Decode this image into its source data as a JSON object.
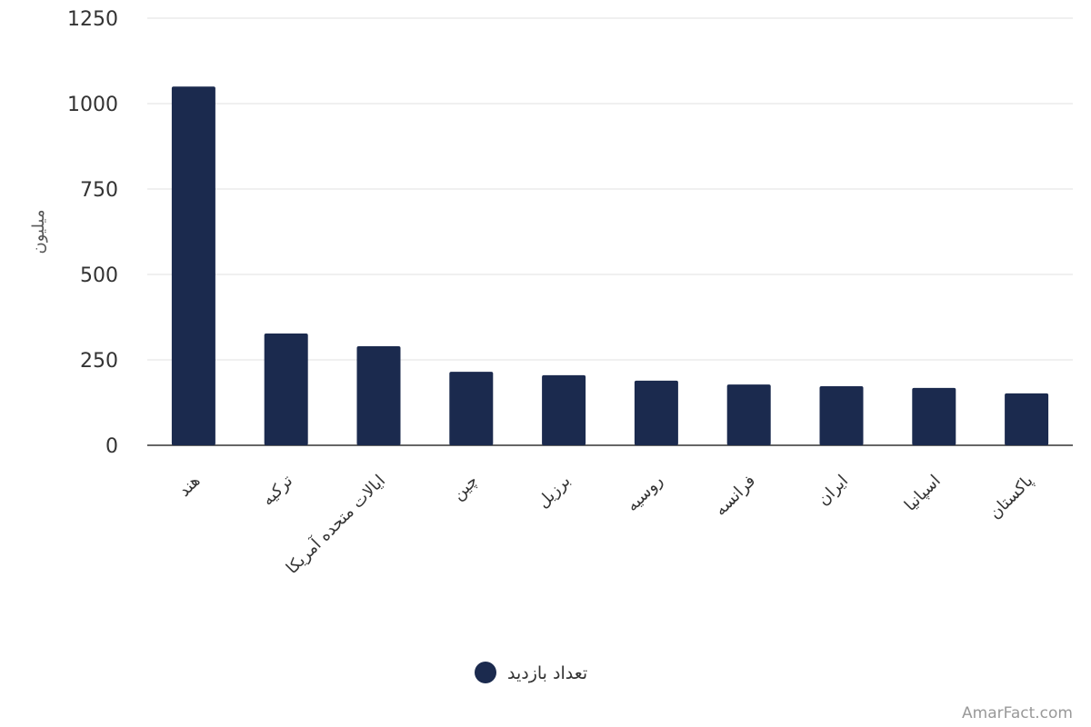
{
  "chart_data": {
    "type": "bar",
    "y_label": "میلیون",
    "categories": [
      "هند",
      "ترکیه",
      "ایالات متحده آمریکا",
      "چین",
      "برزیل",
      "روسیه",
      "فرانسه",
      "ایران",
      "اسپانیا",
      "پاکستان"
    ],
    "series": [
      {
        "name": "تعداد بازدید",
        "color": "#1b2a4e",
        "values": [
          1050,
          327,
          290,
          215,
          205,
          189,
          178,
          173,
          168,
          152
        ]
      }
    ],
    "ylim": [
      0,
      1250
    ],
    "yticks": [
      0,
      250,
      500,
      750,
      1000,
      1250
    ],
    "grid": true,
    "watermark": "AmarFact.com"
  }
}
